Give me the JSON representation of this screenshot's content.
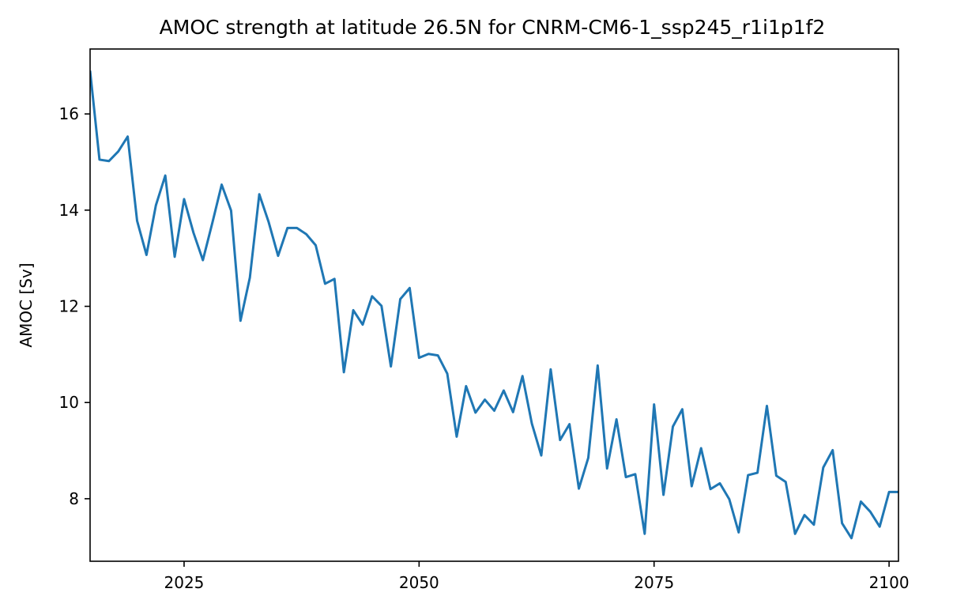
{
  "chart_data": {
    "type": "line",
    "title": "AMOC strength at latitude 26.5N for CNRM-CM6-1_ssp245_r1i1p1f2",
    "xlabel": "",
    "ylabel": "AMOC [Sv]",
    "xlim": [
      2015,
      2101
    ],
    "ylim": [
      6.7,
      17.35
    ],
    "xticks": [
      2025,
      2050,
      2075,
      2100
    ],
    "yticks": [
      8,
      10,
      12,
      14,
      16
    ],
    "grid": false,
    "line_color": "#1f77b4",
    "series": [
      {
        "x": [
          2015,
          2016,
          2017,
          2018,
          2019,
          2020,
          2021,
          2022,
          2023,
          2024,
          2025,
          2026,
          2027,
          2028,
          2029,
          2030,
          2031,
          2032,
          2033,
          2034,
          2035,
          2036,
          2037,
          2038,
          2039,
          2040,
          2041,
          2042,
          2043,
          2044,
          2045,
          2046,
          2047,
          2048,
          2049,
          2050,
          2051,
          2052,
          2053,
          2054,
          2055,
          2056,
          2057,
          2058,
          2059,
          2060,
          2061,
          2062,
          2063,
          2064,
          2065,
          2066,
          2067,
          2068,
          2069,
          2070,
          2071,
          2072,
          2073,
          2074,
          2075,
          2076,
          2077,
          2078,
          2079,
          2080,
          2081,
          2082,
          2083,
          2084,
          2085,
          2086,
          2087,
          2088,
          2089,
          2090,
          2091,
          2092,
          2093,
          2094,
          2095,
          2096,
          2097,
          2098,
          2099,
          2100,
          2101
        ],
        "values": [
          16.9,
          15.05,
          15.02,
          15.22,
          15.53,
          13.78,
          13.07,
          14.1,
          14.72,
          13.03,
          14.23,
          13.53,
          12.96,
          13.73,
          14.53,
          13.99,
          11.7,
          12.6,
          14.33,
          13.75,
          13.05,
          13.63,
          13.63,
          13.5,
          13.27,
          12.47,
          12.57,
          10.63,
          11.92,
          11.62,
          12.21,
          12.01,
          10.75,
          12.15,
          12.38,
          10.93,
          11.01,
          10.98,
          10.6,
          9.29,
          10.34,
          9.79,
          10.06,
          9.83,
          10.25,
          9.8,
          10.55,
          9.56,
          8.9,
          10.69,
          9.22,
          9.55,
          8.21,
          8.85,
          10.77,
          8.63,
          9.65,
          8.45,
          8.51,
          7.27,
          9.96,
          8.08,
          9.5,
          9.86,
          8.26,
          9.05,
          8.2,
          8.32,
          7.99,
          7.3,
          8.49,
          8.54,
          9.93,
          8.48,
          8.35,
          7.27,
          7.66,
          7.46,
          8.65,
          9.01,
          7.49,
          7.18,
          7.94,
          7.73,
          7.42,
          8.14,
          8.14
        ]
      }
    ]
  }
}
